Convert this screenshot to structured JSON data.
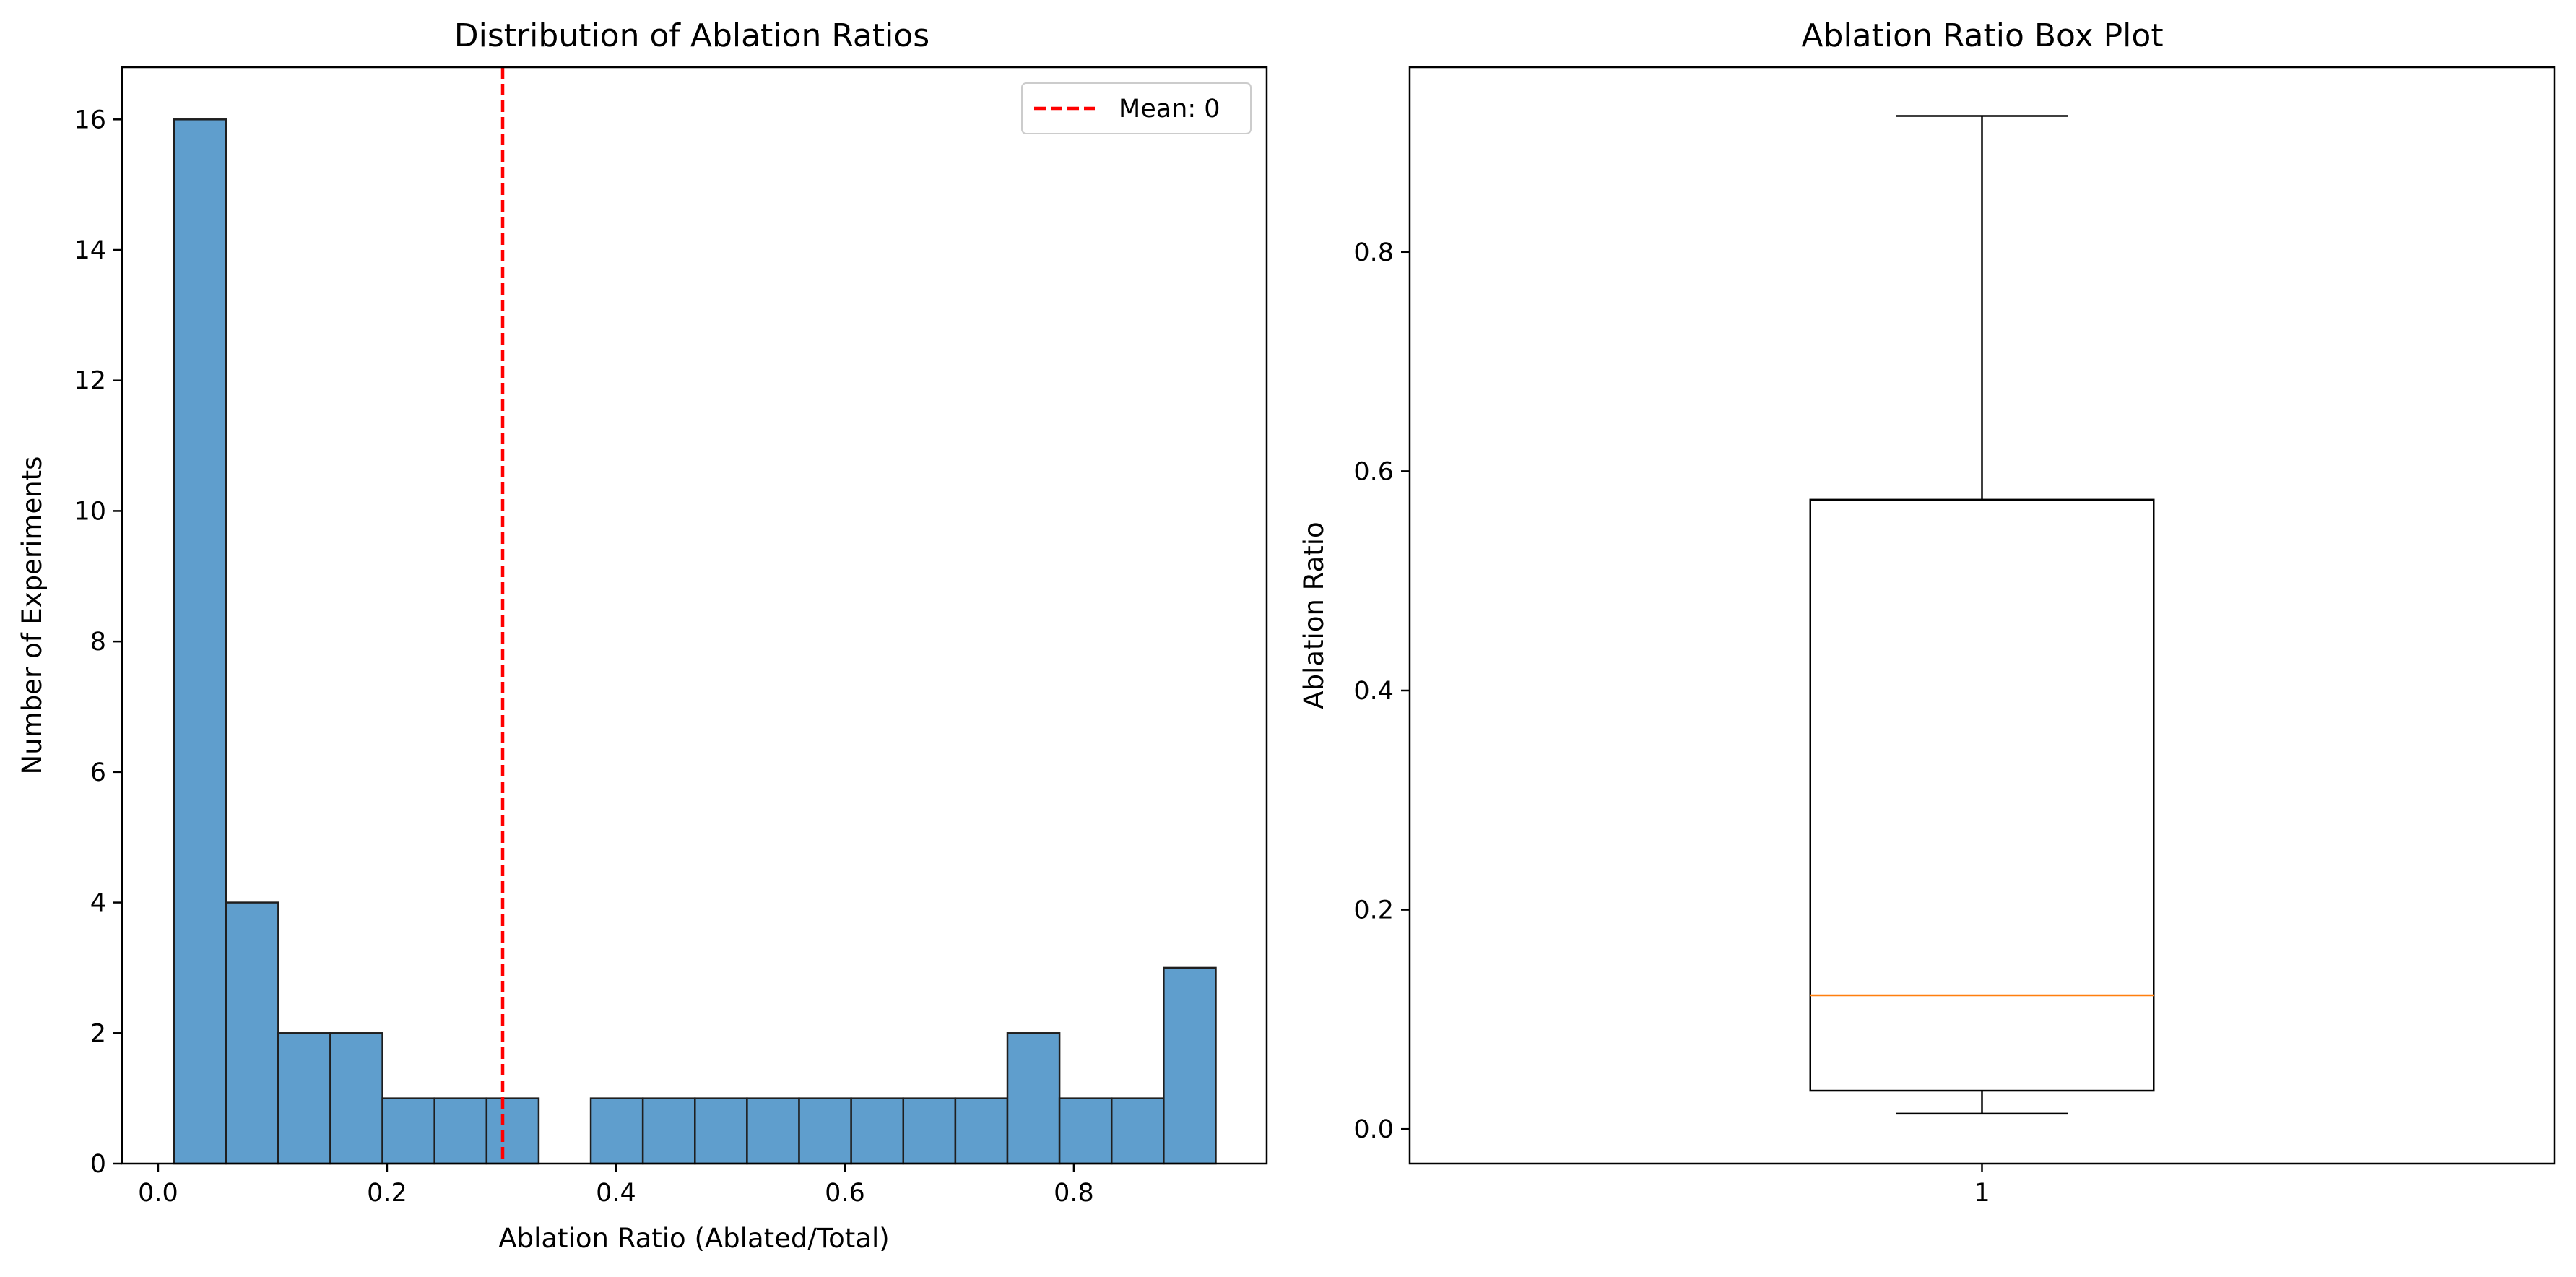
{
  "chart_data": [
    {
      "type": "bar",
      "subtype": "histogram",
      "title": "Distribution of Ablation Ratios",
      "xlabel": "Ablation Ratio (Ablated/Total)",
      "ylabel": "Number of Experiments",
      "xlim": [
        -0.0315,
        0.9685
      ],
      "ylim": [
        0,
        16.8
      ],
      "xticks": [
        0.0,
        0.2,
        0.4,
        0.6,
        0.8
      ],
      "xtick_labels": [
        "0.0",
        "0.2",
        "0.4",
        "0.6",
        "0.8"
      ],
      "yticks": [
        0,
        2,
        4,
        6,
        8,
        10,
        12,
        14,
        16
      ],
      "ytick_labels": [
        "0",
        "2",
        "4",
        "6",
        "8",
        "10",
        "12",
        "14",
        "16"
      ],
      "bin_edges": [
        0.014,
        0.0595,
        0.105,
        0.1505,
        0.196,
        0.2415,
        0.287,
        0.3325,
        0.378,
        0.4235,
        0.469,
        0.5145,
        0.56,
        0.6055,
        0.651,
        0.6965,
        0.742,
        0.7875,
        0.833,
        0.8785,
        0.924
      ],
      "counts": [
        16,
        4,
        2,
        2,
        1,
        1,
        1,
        0,
        1,
        1,
        1,
        1,
        1,
        1,
        1,
        1,
        2,
        1,
        1,
        3
      ],
      "bar_color": "#5f9ecd",
      "edge_color": "#1f1f1f",
      "mean_line": {
        "x": 0.301,
        "color": "#ff0000",
        "style": "dashed"
      },
      "legend": {
        "label": "Mean: 0",
        "position": "top-right"
      },
      "grid": false
    },
    {
      "type": "box",
      "title": "Ablation Ratio Box Plot",
      "xlabel": "",
      "ylabel": "Ablation Ratio",
      "xlim": [
        0.5,
        1.5
      ],
      "ylim": [
        -0.0315,
        0.9685
      ],
      "xticks": [
        1
      ],
      "xtick_labels": [
        "1"
      ],
      "yticks": [
        0.0,
        0.2,
        0.4,
        0.6,
        0.8
      ],
      "ytick_labels": [
        "0.0",
        "0.2",
        "0.4",
        "0.6",
        "0.8"
      ],
      "boxes": [
        {
          "position": 1,
          "whisker_low": 0.014,
          "q1": 0.035,
          "median": 0.122,
          "q3": 0.574,
          "whisker_high": 0.924
        }
      ],
      "median_color": "#ff7f0e",
      "grid": false
    }
  ]
}
